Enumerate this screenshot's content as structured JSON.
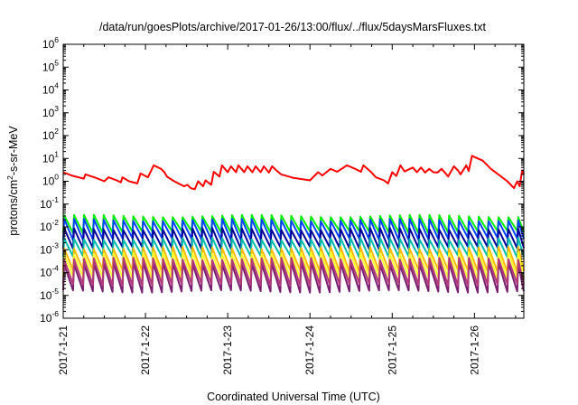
{
  "chart_data": {
    "type": "line",
    "title": "/data/run/goesPlots/archive/2017-01-26/13:00/flux/../flux/5daysMarsFluxes.txt",
    "xlabel": "Coordinated Universal Time (UTC)",
    "ylabel": "protons/cm2-s-sr-MeV",
    "ylabel_parts": {
      "before": "protons/cm",
      "sup": "2",
      "after": "-s-sr-MeV"
    },
    "yscale": "log",
    "xlim": [
      0,
      5.6
    ],
    "ylim_exponents": [
      -6,
      6
    ],
    "y_tick_labels": [
      {
        "base": "10",
        "exp": "-6"
      },
      {
        "base": "10",
        "exp": "-5"
      },
      {
        "base": "10",
        "exp": "-4"
      },
      {
        "base": "10",
        "exp": "-3"
      },
      {
        "base": "10",
        "exp": "-2"
      },
      {
        "base": "10",
        "exp": "-1"
      },
      {
        "base": "10",
        "exp": "0"
      },
      {
        "base": "10",
        "exp": "1"
      },
      {
        "base": "10",
        "exp": "2"
      },
      {
        "base": "10",
        "exp": "3"
      },
      {
        "base": "10",
        "exp": "4"
      },
      {
        "base": "10",
        "exp": "5"
      },
      {
        "base": "10",
        "exp": "6"
      }
    ],
    "x_tick_labels": [
      {
        "label": "2017-1-21",
        "x": 0
      },
      {
        "label": "2017-1-22",
        "x": 1
      },
      {
        "label": "2017-1-23",
        "x": 2
      },
      {
        "label": "2017-1-24",
        "x": 3
      },
      {
        "label": "2017-1-25",
        "x": 4
      },
      {
        "label": "2017-1-26",
        "x": 5
      }
    ],
    "sawtooth_period_days": 0.12,
    "series": [
      {
        "color": "#ff0000",
        "kind": "points",
        "x": [
          0,
          0.1,
          0.25,
          0.27,
          0.4,
          0.5,
          0.55,
          0.65,
          0.7,
          0.72,
          0.8,
          0.9,
          0.94,
          1.03,
          1.1,
          1.19,
          1.23,
          1.26,
          1.3,
          1.35,
          1.4,
          1.47,
          1.51,
          1.55,
          1.6,
          1.64,
          1.7,
          1.73,
          1.8,
          1.83,
          1.9,
          1.93,
          2.0,
          2.04,
          2.1,
          2.13,
          2.2,
          2.24,
          2.3,
          2.34,
          2.4,
          2.44,
          2.5,
          2.54,
          2.6,
          2.65,
          2.8,
          3.0,
          3.1,
          3.15,
          3.25,
          3.33,
          3.45,
          3.55,
          3.62,
          3.65,
          3.75,
          3.8,
          3.9,
          3.95,
          4.0,
          4.05,
          4.1,
          4.15,
          4.25,
          4.3,
          4.35,
          4.4,
          4.45,
          4.5,
          4.55,
          4.6,
          4.65,
          4.68,
          4.75,
          4.8,
          4.83,
          4.9,
          4.93,
          4.97,
          5.1,
          5.2,
          5.4,
          5.48,
          5.52,
          5.55,
          5.58,
          5.6
        ],
        "y": [
          2.5,
          1.8,
          1.3,
          2.0,
          1.4,
          1.0,
          1.5,
          1.1,
          0.9,
          1.5,
          1.0,
          0.8,
          2.2,
          1.5,
          5.0,
          3.5,
          2.5,
          1.6,
          1.3,
          1.0,
          0.8,
          0.6,
          0.7,
          0.5,
          0.45,
          1.0,
          0.6,
          1.1,
          0.7,
          2.6,
          1.6,
          5.0,
          2.5,
          4.5,
          2.5,
          5.0,
          2.5,
          4.5,
          2.5,
          4.5,
          2.5,
          4.5,
          2.4,
          4.5,
          2.8,
          2.0,
          1.4,
          1.1,
          2.5,
          1.8,
          3.5,
          2.6,
          5.0,
          3.5,
          2.6,
          5.0,
          2.4,
          1.5,
          1.1,
          0.8,
          2.5,
          1.7,
          5.0,
          2.7,
          4.0,
          2.5,
          4.0,
          2.4,
          3.5,
          2.5,
          2.4,
          3.5,
          2.2,
          1.6,
          4.5,
          3.0,
          2.0,
          5.0,
          2.8,
          13,
          8.0,
          3.5,
          1.0,
          0.5,
          1.0,
          0.6,
          3.0,
          2.0
        ]
      },
      {
        "color": "#00ee00",
        "kind": "sawtooth",
        "high": 0.03,
        "low": 0.006
      },
      {
        "color": "#0044ff",
        "kind": "sawtooth",
        "high": 0.02,
        "low": 0.003
      },
      {
        "color": "#000099",
        "kind": "sawtooth",
        "high": 0.008,
        "low": 0.0012
      },
      {
        "color": "#00bbaa",
        "kind": "sawtooth",
        "high": 0.003,
        "low": 0.0005
      },
      {
        "color": "#ffbb00",
        "kind": "sawtooth",
        "high": 0.0012,
        "low": 0.00012
      },
      {
        "color": "#ffff33",
        "kind": "sawtooth",
        "high": 0.0007,
        "low": 6e-05
      },
      {
        "color": "#7a2070",
        "kind": "sawtooth",
        "high": 0.00025,
        "low": 1.5e-05
      },
      {
        "color": "#b23a7a",
        "kind": "sawtooth",
        "high": 0.0004,
        "low": 3e-05
      }
    ]
  }
}
